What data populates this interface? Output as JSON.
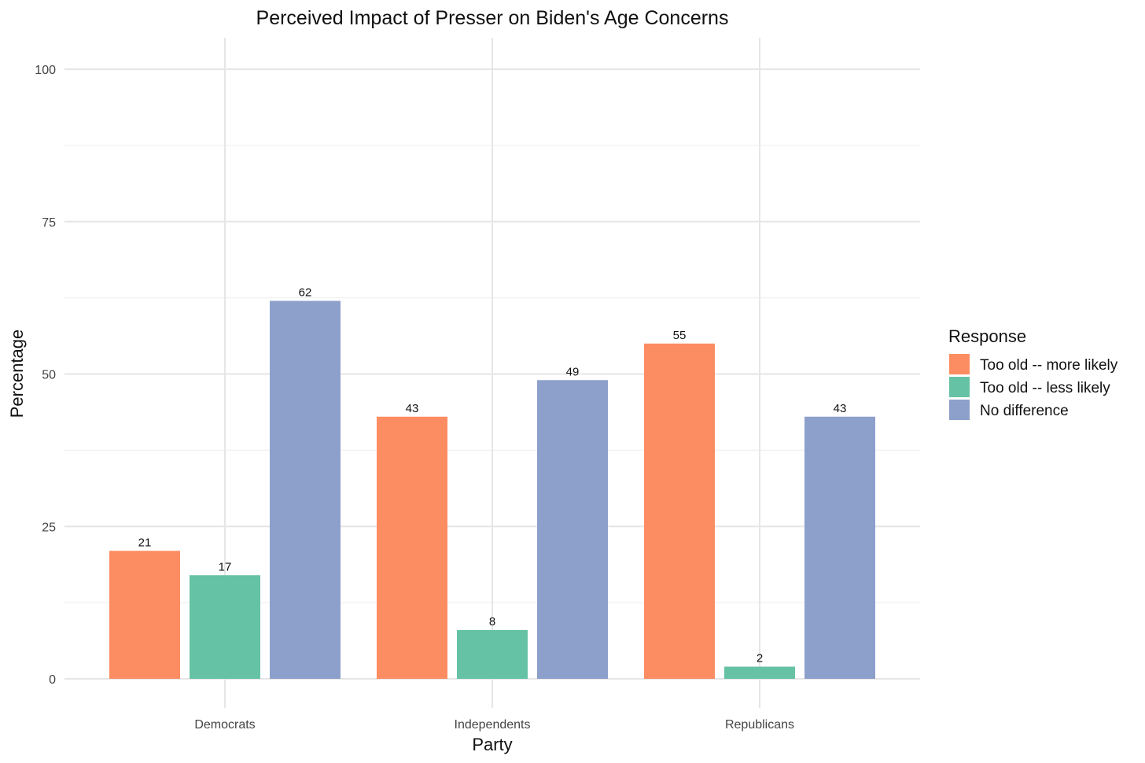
{
  "chart_data": {
    "type": "bar",
    "title": "Perceived Impact of Presser on Biden's Age Concerns",
    "xlabel": "Party",
    "ylabel": "Percentage",
    "categories": [
      "Democrats",
      "Independents",
      "Republicans"
    ],
    "series": [
      {
        "name": "Too old -- more likely",
        "values": [
          21,
          43,
          55
        ],
        "color": "#FC8D62"
      },
      {
        "name": "Too old -- less likely",
        "values": [
          17,
          8,
          2
        ],
        "color": "#66C2A5"
      },
      {
        "name": "No difference",
        "values": [
          62,
          49,
          43
        ],
        "color": "#8DA0CB"
      }
    ],
    "ylim": [
      0,
      100
    ],
    "yticks": [
      0,
      25,
      50,
      75,
      100
    ],
    "grid": true,
    "legend": {
      "title": "Response",
      "placement": "right"
    }
  }
}
